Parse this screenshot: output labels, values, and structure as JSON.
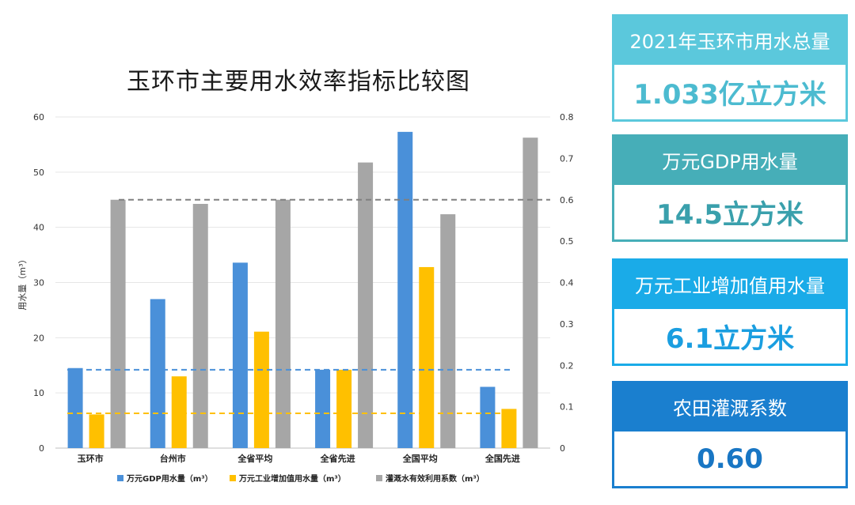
{
  "chart_data": {
    "type": "bar",
    "title": "玉环市主要用水效率指标比较图",
    "ylabel": "用水量（m³）",
    "ylim": [
      0,
      60
    ],
    "y_ticks": [
      "0",
      "10",
      "20",
      "30",
      "40",
      "50",
      "60"
    ],
    "y2lim": [
      0,
      0.8
    ],
    "y2_ticks": [
      "0",
      "0.1",
      "0.2",
      "0.3",
      "0.4",
      "0.5",
      "0.6",
      "0.7",
      "0.8"
    ],
    "categories": [
      "玉环市",
      "台州市",
      "全省平均",
      "全省先进",
      "全国平均",
      "全国先进"
    ],
    "series": [
      {
        "name": "万元GDP用水量（m³）",
        "axis": "left",
        "color": "#4a90d9",
        "values": [
          14.5,
          27.0,
          33.6,
          14.2,
          57.3,
          11.1
        ]
      },
      {
        "name": "万元工业增加值用水量（m³）",
        "axis": "left",
        "color": "#ffc000",
        "values": [
          6.1,
          13.0,
          21.1,
          14.2,
          32.8,
          7.1
        ]
      },
      {
        "name": "灌溉水有效利用系数（m³）",
        "axis": "right",
        "color": "#a6a6a6",
        "values": [
          0.6,
          0.59,
          0.6,
          0.69,
          0.565,
          0.75
        ]
      }
    ],
    "reference_lines": [
      {
        "axis": "left",
        "value": 14.2,
        "color": "#4a90d9"
      },
      {
        "axis": "left",
        "value": 6.3,
        "color": "#ffc000"
      },
      {
        "axis": "right",
        "value": 0.6,
        "color": "#808080"
      }
    ],
    "legend_position": "bottom",
    "grid": true
  },
  "cards": [
    {
      "label": "2021年玉环市用水总量",
      "value": "1.033亿立方米",
      "head_color": "#5bc8dc",
      "border_color": "#5bc8dc",
      "value_color": "#4cbbd0"
    },
    {
      "label": "万元GDP用水量",
      "value": "14.5立方米",
      "head_color": "#46aeb8",
      "border_color": "#46aeb8",
      "value_color": "#3aa0ac"
    },
    {
      "label": "万元工业增加值用水量",
      "value": "6.1立方米",
      "head_color": "#1aabe8",
      "border_color": "#1aabe8",
      "value_color": "#1a9ee0"
    },
    {
      "label": "农田灌溉系数",
      "value": "0.60",
      "head_color": "#1a7fcf",
      "border_color": "#1a7fcf",
      "value_color": "#1876c4"
    }
  ]
}
